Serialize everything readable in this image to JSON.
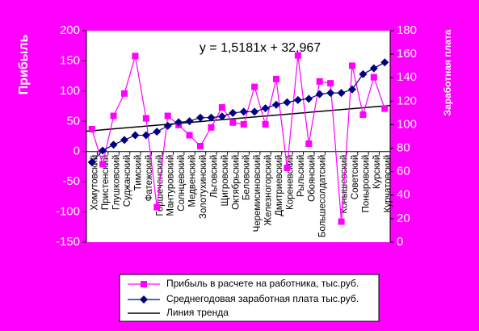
{
  "chart_data": {
    "type": "line",
    "y_label": "Прибыль",
    "y2_label": "Заработная плата",
    "categories": [
      "Хомутовский",
      "Пристенский",
      "Глушковский",
      "Суджанский",
      "Тимский",
      "Фатежский",
      "Горшеченский",
      "Мантуровский",
      "Солнцевский",
      "Медвенский",
      "Золотухинский",
      "Льговский",
      "Щигровский",
      "Октябрьский",
      "Беловский",
      "Черемисиновский",
      "Железногорский",
      "Дмитриевский",
      "Кореневский",
      "Рыльский",
      "Обоянский",
      "Большесолдатский",
      null,
      "Конышевский",
      "Советский",
      "Поныровский",
      "Курский",
      "Курчатовский"
    ],
    "series": [
      {
        "name": "Прибыль в расчете на работника, тыс.руб.",
        "color": "#ff00ff",
        "marker": "square",
        "values": [
          37,
          -21,
          59,
          96,
          158,
          55,
          -92,
          59,
          44,
          27,
          9,
          40,
          73,
          48,
          45,
          107,
          45,
          120,
          -27,
          159,
          13,
          116,
          113,
          -116,
          142,
          61,
          123,
          71
        ]
      },
      {
        "name": "Среднегодовая заработная плата тыс.руб.",
        "color": "#000080",
        "marker": "diamond",
        "axis": "y2",
        "values": [
          68,
          78,
          83,
          87,
          91,
          91,
          94,
          99,
          102,
          103,
          106,
          106,
          107,
          110,
          111,
          111,
          114,
          117,
          119,
          121,
          122,
          126,
          127,
          127,
          130,
          143,
          148,
          153
        ]
      }
    ],
    "trendline": {
      "name": "Линия тренда",
      "color": "#000000",
      "slope": 1.5181,
      "intercept": 32.967,
      "label": "y = 1,5181x + 32,967"
    },
    "ylim": [
      -150,
      200
    ],
    "yticks": [
      -150,
      -100,
      -50,
      0,
      50,
      100,
      150,
      200
    ],
    "y2lim": [
      0,
      180
    ],
    "y2ticks": [
      0,
      20,
      40,
      60,
      80,
      100,
      120,
      140,
      160,
      180
    ],
    "grid": false
  }
}
